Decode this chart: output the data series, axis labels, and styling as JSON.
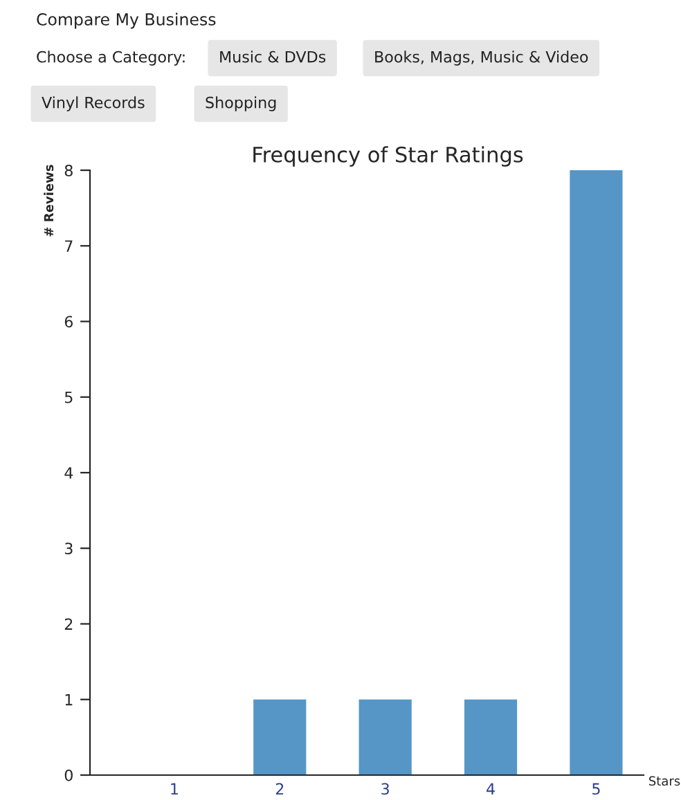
{
  "chart_data": {
    "type": "bar",
    "title": "Frequency of Star Ratings",
    "xlabel": "Stars",
    "ylabel": "# Reviews",
    "categories": [
      "1",
      "2",
      "3",
      "4",
      "5"
    ],
    "values": [
      0,
      1,
      1,
      1,
      8
    ],
    "color": "#5596c6",
    "ylim": [
      0,
      8
    ],
    "yticks": [
      0,
      1,
      2,
      3,
      4,
      5,
      6,
      7,
      8
    ],
    "grid": false,
    "legend": false,
    "annotations": [
      "Compare My Business",
      "Choose a Category:",
      "Music & DVDs",
      "Books, Mags, Music & Video",
      "Vinyl Records",
      "Shopping"
    ]
  }
}
